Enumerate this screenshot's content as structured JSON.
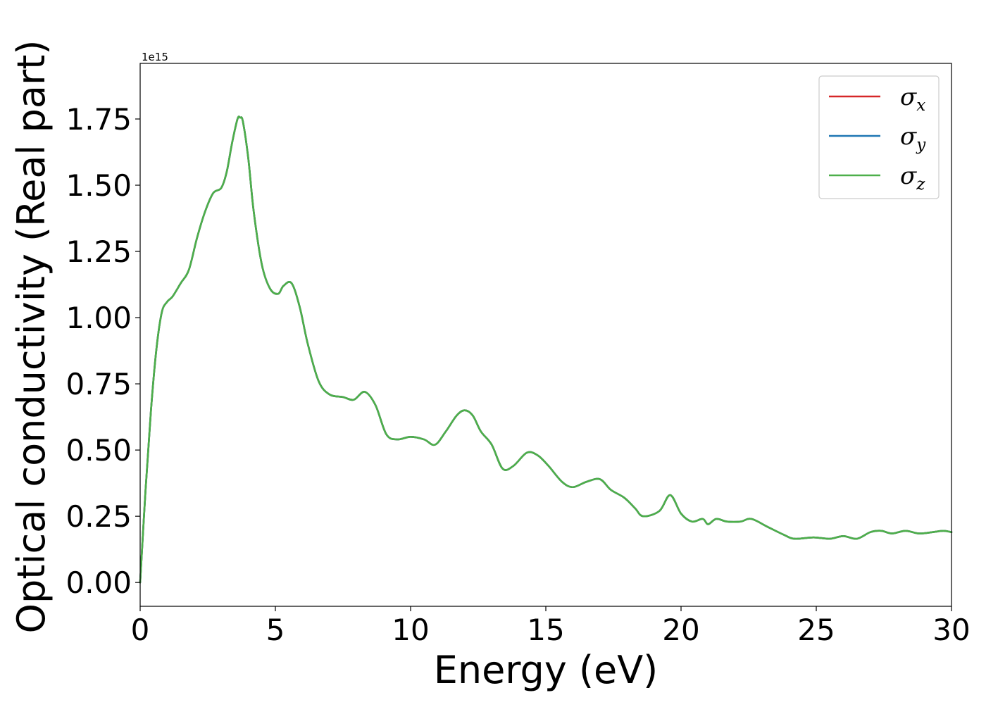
{
  "chart_data": {
    "type": "line",
    "title": "",
    "xlabel": "Energy (eV)",
    "ylabel": "Optical conductivity (Real part)",
    "y_offset_text": "1e15",
    "xlim": [
      0,
      30
    ],
    "ylim": [
      -0.09,
      1.96
    ],
    "y_scale_note": "values in units of 1e15",
    "xticks": [
      0,
      5,
      10,
      15,
      20,
      25,
      30
    ],
    "xtick_labels": [
      "0",
      "5",
      "10",
      "15",
      "20",
      "25",
      "30"
    ],
    "yticks": [
      0.0,
      0.25,
      0.5,
      0.75,
      1.0,
      1.25,
      1.5,
      1.75
    ],
    "ytick_labels": [
      "0.00",
      "0.25",
      "0.50",
      "0.75",
      "1.00",
      "1.25",
      "1.50",
      "1.75"
    ],
    "grid": false,
    "legend": {
      "position": "top-right",
      "entries": [
        {
          "symbol": "σ",
          "sub": "x",
          "color": "#d62728"
        },
        {
          "symbol": "σ",
          "sub": "y",
          "color": "#1f77b4"
        },
        {
          "symbol": "σ",
          "sub": "z",
          "color": "#4daf4a"
        }
      ]
    },
    "x": [
      0,
      0.2,
      0.4,
      0.6,
      0.8,
      1.0,
      1.2,
      1.5,
      1.8,
      2.1,
      2.4,
      2.7,
      3.0,
      3.2,
      3.4,
      3.6,
      3.7,
      3.8,
      4.0,
      4.2,
      4.5,
      4.8,
      5.1,
      5.3,
      5.6,
      5.9,
      6.2,
      6.6,
      7.0,
      7.5,
      7.9,
      8.3,
      8.7,
      9.1,
      9.5,
      10.0,
      10.5,
      10.9,
      11.3,
      11.7,
      12.0,
      12.3,
      12.6,
      13.0,
      13.4,
      13.8,
      14.3,
      14.7,
      15.1,
      15.6,
      16.0,
      16.5,
      17.0,
      17.4,
      17.9,
      18.3,
      18.6,
      19.2,
      19.6,
      20.0,
      20.4,
      20.8,
      21.0,
      21.3,
      21.7,
      22.2,
      22.6,
      23.2,
      23.8,
      24.2,
      24.9,
      25.5,
      26.0,
      26.5,
      27.0,
      27.4,
      27.8,
      28.3,
      28.8,
      29.3,
      29.7,
      30.0
    ],
    "series": [
      {
        "name": "σx",
        "color": "#d62728",
        "values": [
          0.0,
          0.35,
          0.65,
          0.88,
          1.02,
          1.06,
          1.08,
          1.13,
          1.18,
          1.3,
          1.4,
          1.47,
          1.49,
          1.55,
          1.66,
          1.75,
          1.755,
          1.74,
          1.6,
          1.4,
          1.2,
          1.11,
          1.09,
          1.12,
          1.13,
          1.04,
          0.9,
          0.76,
          0.71,
          0.7,
          0.69,
          0.72,
          0.67,
          0.56,
          0.54,
          0.55,
          0.54,
          0.52,
          0.57,
          0.63,
          0.65,
          0.63,
          0.57,
          0.52,
          0.43,
          0.44,
          0.49,
          0.48,
          0.44,
          0.38,
          0.36,
          0.38,
          0.39,
          0.35,
          0.32,
          0.28,
          0.25,
          0.27,
          0.33,
          0.26,
          0.23,
          0.24,
          0.22,
          0.24,
          0.23,
          0.23,
          0.24,
          0.21,
          0.18,
          0.165,
          0.17,
          0.165,
          0.175,
          0.165,
          0.19,
          0.195,
          0.185,
          0.195,
          0.185,
          0.19,
          0.195,
          0.19
        ]
      },
      {
        "name": "σy",
        "color": "#1f77b4",
        "values": [
          0.0,
          0.35,
          0.65,
          0.88,
          1.02,
          1.06,
          1.08,
          1.13,
          1.18,
          1.3,
          1.4,
          1.47,
          1.49,
          1.55,
          1.66,
          1.75,
          1.755,
          1.74,
          1.6,
          1.4,
          1.2,
          1.11,
          1.09,
          1.12,
          1.13,
          1.04,
          0.9,
          0.76,
          0.71,
          0.7,
          0.69,
          0.72,
          0.67,
          0.56,
          0.54,
          0.55,
          0.54,
          0.52,
          0.57,
          0.63,
          0.65,
          0.63,
          0.57,
          0.52,
          0.43,
          0.44,
          0.49,
          0.48,
          0.44,
          0.38,
          0.36,
          0.38,
          0.39,
          0.35,
          0.32,
          0.28,
          0.25,
          0.27,
          0.33,
          0.26,
          0.23,
          0.24,
          0.22,
          0.24,
          0.23,
          0.23,
          0.24,
          0.21,
          0.18,
          0.165,
          0.17,
          0.165,
          0.175,
          0.165,
          0.19,
          0.195,
          0.185,
          0.195,
          0.185,
          0.19,
          0.195,
          0.19
        ]
      },
      {
        "name": "σz",
        "color": "#4daf4a",
        "values": [
          0.0,
          0.35,
          0.65,
          0.88,
          1.02,
          1.06,
          1.08,
          1.13,
          1.18,
          1.3,
          1.4,
          1.47,
          1.49,
          1.55,
          1.66,
          1.75,
          1.755,
          1.74,
          1.6,
          1.4,
          1.2,
          1.11,
          1.09,
          1.12,
          1.13,
          1.04,
          0.9,
          0.76,
          0.71,
          0.7,
          0.69,
          0.72,
          0.67,
          0.56,
          0.54,
          0.55,
          0.54,
          0.52,
          0.57,
          0.63,
          0.65,
          0.63,
          0.57,
          0.52,
          0.43,
          0.44,
          0.49,
          0.48,
          0.44,
          0.38,
          0.36,
          0.38,
          0.39,
          0.35,
          0.32,
          0.28,
          0.25,
          0.27,
          0.33,
          0.26,
          0.23,
          0.24,
          0.22,
          0.24,
          0.23,
          0.23,
          0.24,
          0.21,
          0.18,
          0.165,
          0.17,
          0.165,
          0.175,
          0.165,
          0.19,
          0.195,
          0.185,
          0.195,
          0.185,
          0.19,
          0.195,
          0.19
        ]
      }
    ]
  }
}
